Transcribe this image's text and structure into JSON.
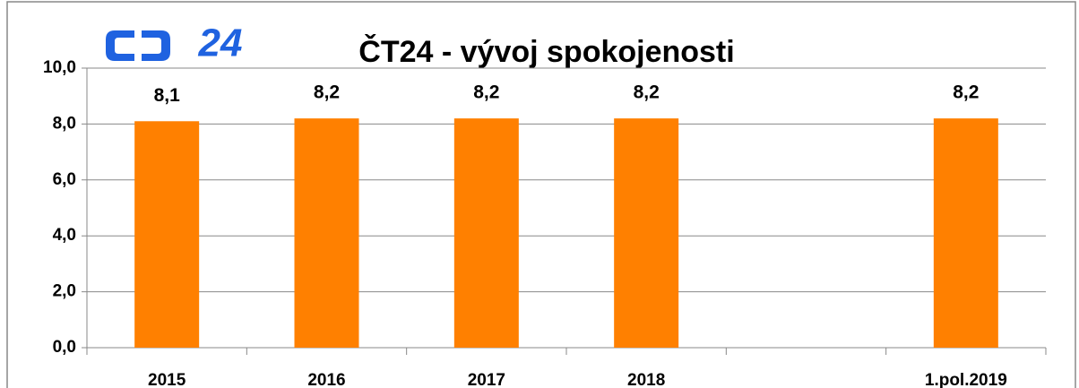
{
  "chart_data": {
    "type": "bar",
    "title": "ČT24 - vývoj spokojenosti",
    "logo": "24",
    "categories": [
      "2015",
      "2016",
      "2017",
      "2018",
      null,
      "1.pol.2019"
    ],
    "values": [
      8.1,
      8.2,
      8.2,
      8.2,
      null,
      8.2
    ],
    "value_labels": [
      "8,1",
      "8,2",
      "8,2",
      "8,2",
      null,
      "8,2"
    ],
    "color": "#ff8000",
    "ylim": [
      0,
      10
    ],
    "yticks": [
      {
        "value": 0,
        "label": "0,0"
      },
      {
        "value": 2,
        "label": "2,0"
      },
      {
        "value": 4,
        "label": "4,0"
      },
      {
        "value": 6,
        "label": "6,0"
      },
      {
        "value": 8,
        "label": "8,0"
      },
      {
        "value": 10,
        "label": "10,0"
      }
    ],
    "grid": true
  }
}
